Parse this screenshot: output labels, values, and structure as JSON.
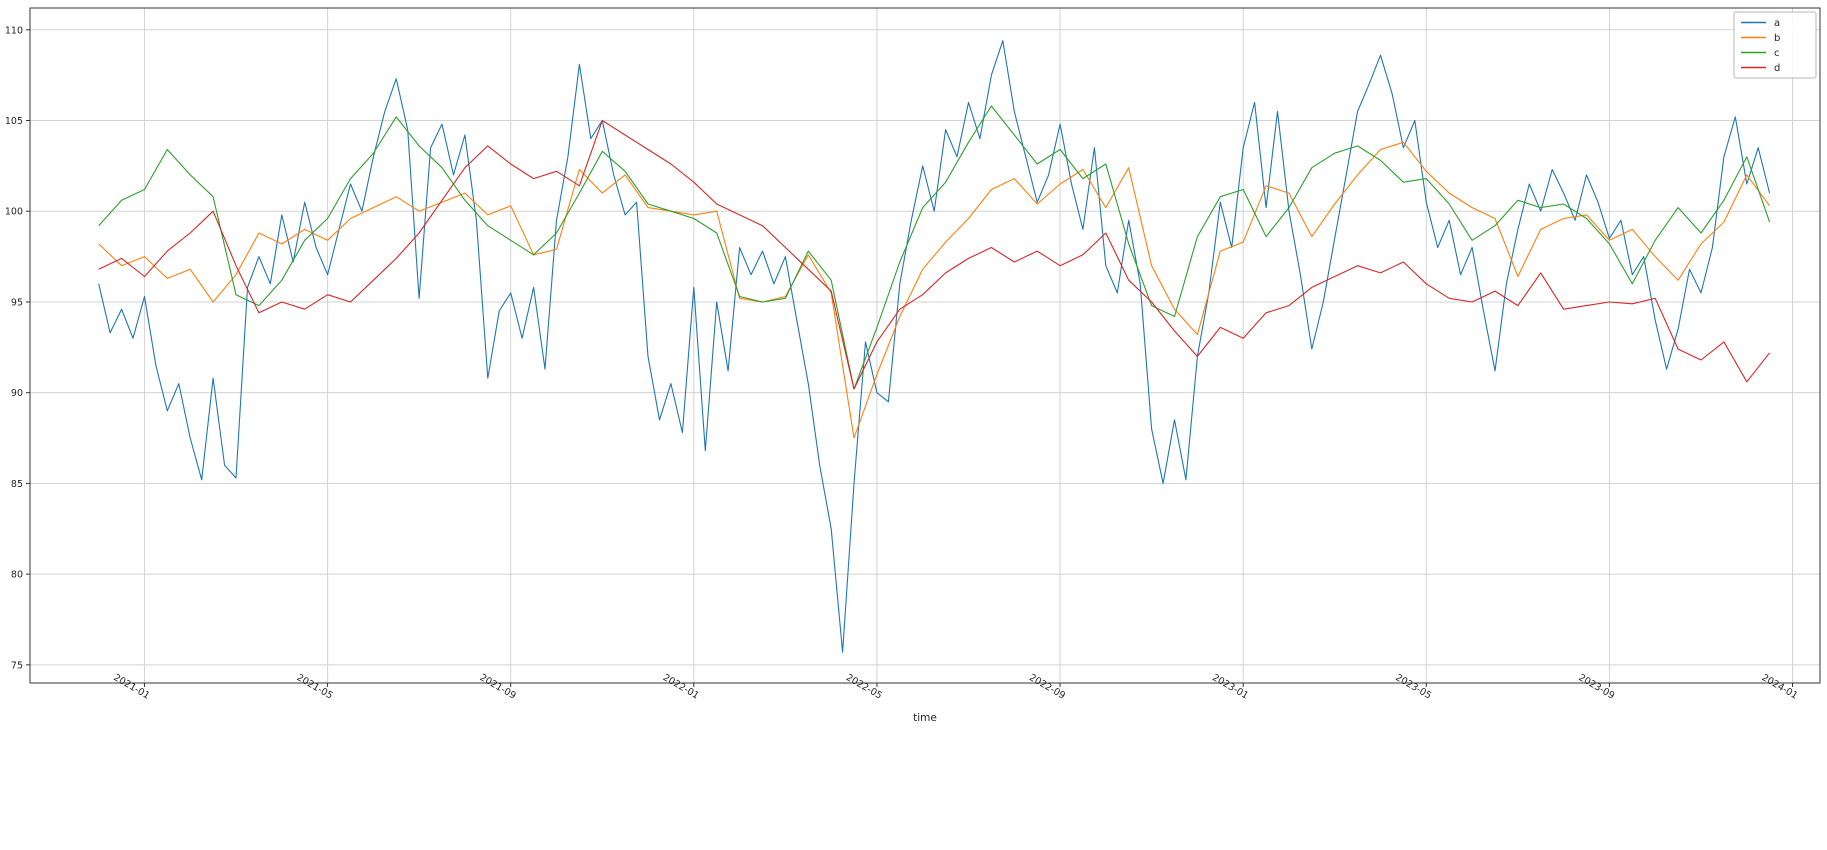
{
  "chart_data": {
    "type": "line",
    "title": "",
    "xlabel": "time",
    "ylabel": "",
    "grid": true,
    "background": "#ffffff",
    "grid_color": "#d3d3d3",
    "spine_color": "#343434",
    "x_axis": {
      "unit": "months since 2020-12-01",
      "domain": [
        -1.5,
        37.6
      ],
      "tick_positions": [
        1,
        5,
        9,
        13,
        17,
        21,
        25,
        29,
        33,
        37
      ],
      "tick_labels": [
        "2021-01",
        "2021-05",
        "2021-09",
        "2022-01",
        "2022-05",
        "2022-09",
        "2023-01",
        "2023-05",
        "2023-09",
        "2024-01"
      ]
    },
    "y_axis": {
      "domain": [
        74.0,
        111.2
      ],
      "tick_positions": [
        75,
        80,
        85,
        90,
        95,
        100,
        105,
        110
      ],
      "tick_labels": [
        "75",
        "80",
        "85",
        "90",
        "95",
        "100",
        "105",
        "110"
      ]
    },
    "legend": {
      "position": "upper right",
      "entries": [
        {
          "label": "a",
          "color": "#1f77b4"
        },
        {
          "label": "b",
          "color": "#ff7f0e"
        },
        {
          "label": "c",
          "color": "#2ca02c"
        },
        {
          "label": "d",
          "color": "#d62728"
        }
      ]
    },
    "series": [
      {
        "name": "a",
        "color": "#1f77b4",
        "t_start": 0,
        "t_step": 0.25,
        "values": [
          96.0,
          93.3,
          94.6,
          93.0,
          95.3,
          91.5,
          89.0,
          90.5,
          87.5,
          85.2,
          90.8,
          86.0,
          85.3,
          95.8,
          97.5,
          96.0,
          99.8,
          97.2,
          100.5,
          98.0,
          96.5,
          99.0,
          101.5,
          100.0,
          103.0,
          105.5,
          107.3,
          104.5,
          95.2,
          103.5,
          104.8,
          102.0,
          104.2,
          99.5,
          90.8,
          94.5,
          95.5,
          93.0,
          95.8,
          91.3,
          99.5,
          103.0,
          108.1,
          104.0,
          105.0,
          102.0,
          99.8,
          100.5,
          92.0,
          88.5,
          90.5,
          87.8,
          95.8,
          86.8,
          95.0,
          91.2,
          98.0,
          96.5,
          97.8,
          96.0,
          97.5,
          94.0,
          90.5,
          86.0,
          82.5,
          75.7,
          85.0,
          92.8,
          90.0,
          89.5,
          96.0,
          99.5,
          102.5,
          100.0,
          104.5,
          103.0,
          106.0,
          104.0,
          107.5,
          109.4,
          105.5,
          103.0,
          100.5,
          102.0,
          104.8,
          101.5,
          99.0,
          103.5,
          97.0,
          95.5,
          99.5,
          96.0,
          88.0,
          85.0,
          88.5,
          85.2,
          92.0,
          95.5,
          100.5,
          98.0,
          103.5,
          106.0,
          100.2,
          105.5,
          100.0,
          96.5,
          92.4,
          95.0,
          98.5,
          102.0,
          105.5,
          107.0,
          108.6,
          106.5,
          103.5,
          105.0,
          100.5,
          98.0,
          99.5,
          96.5,
          98.0,
          94.5,
          91.2,
          96.0,
          99.0,
          101.5,
          100.0,
          102.3,
          101.0,
          99.5,
          102.0,
          100.5,
          98.5,
          99.5,
          96.5,
          97.5,
          94.0,
          91.3,
          93.5,
          96.8,
          95.5,
          98.0,
          103.0,
          105.2,
          101.5,
          103.5,
          101.0
        ]
      },
      {
        "name": "b",
        "color": "#ff7f0e",
        "t_start": 0,
        "t_step": 0.5,
        "values": [
          98.2,
          97.0,
          97.5,
          96.3,
          96.8,
          95.0,
          96.5,
          98.8,
          98.2,
          99.0,
          98.4,
          99.6,
          100.2,
          100.8,
          100.0,
          100.5,
          101.0,
          99.8,
          100.3,
          97.6,
          97.9,
          102.3,
          101.0,
          102.0,
          100.2,
          100.0,
          99.8,
          100.0,
          95.2,
          95.0,
          95.3,
          97.6,
          95.5,
          87.5,
          91.0,
          94.2,
          96.8,
          98.3,
          99.6,
          101.2,
          101.8,
          100.4,
          101.5,
          102.3,
          100.2,
          102.4,
          97.0,
          94.6,
          93.2,
          97.8,
          98.3,
          101.4,
          101.0,
          98.6,
          100.4,
          102.0,
          103.4,
          103.8,
          102.2,
          101.0,
          100.2,
          99.6,
          96.4,
          99.0,
          99.6,
          99.8,
          98.4,
          99.0,
          97.5,
          96.2,
          98.2,
          99.4,
          102.0,
          100.3
        ]
      },
      {
        "name": "c",
        "color": "#2ca02c",
        "t_start": 0,
        "t_step": 0.5,
        "values": [
          99.2,
          100.6,
          101.2,
          103.4,
          102.0,
          100.8,
          95.4,
          94.8,
          96.2,
          98.4,
          99.6,
          101.8,
          103.2,
          105.2,
          103.6,
          102.4,
          100.6,
          99.2,
          98.4,
          97.6,
          98.8,
          101.0,
          103.3,
          102.2,
          100.4,
          100.0,
          99.6,
          98.8,
          95.3,
          95.0,
          95.2,
          97.8,
          96.2,
          90.2,
          93.6,
          97.2,
          100.2,
          101.6,
          103.8,
          105.8,
          104.2,
          102.6,
          103.4,
          101.8,
          102.6,
          98.2,
          94.8,
          94.2,
          98.6,
          100.8,
          101.2,
          98.6,
          100.2,
          102.4,
          103.2,
          103.6,
          102.8,
          101.6,
          101.8,
          100.4,
          98.4,
          99.2,
          100.6,
          100.2,
          100.4,
          99.6,
          98.2,
          96.0,
          98.4,
          100.2,
          98.8,
          100.6,
          103.0,
          99.4
        ]
      },
      {
        "name": "d",
        "color": "#d62728",
        "t_start": 0,
        "t_step": 0.5,
        "values": [
          96.8,
          97.4,
          96.4,
          97.8,
          98.8,
          100.0,
          97.0,
          94.4,
          95.0,
          94.6,
          95.4,
          95.0,
          96.2,
          97.4,
          98.8,
          100.6,
          102.4,
          103.6,
          102.6,
          101.8,
          102.2,
          101.4,
          105.0,
          104.2,
          103.4,
          102.6,
          101.6,
          100.4,
          99.8,
          99.2,
          98.0,
          96.8,
          95.6,
          90.2,
          92.8,
          94.6,
          95.4,
          96.6,
          97.4,
          98.0,
          97.2,
          97.8,
          97.0,
          97.6,
          98.8,
          96.2,
          95.0,
          93.4,
          92.0,
          93.6,
          93.0,
          94.4,
          94.8,
          95.8,
          96.4,
          97.0,
          96.6,
          97.2,
          96.0,
          95.2,
          95.0,
          95.6,
          94.8,
          96.6,
          94.6,
          94.8,
          95.0,
          94.9,
          95.2,
          92.4,
          91.8,
          92.8,
          90.6,
          92.2
        ]
      }
    ]
  }
}
